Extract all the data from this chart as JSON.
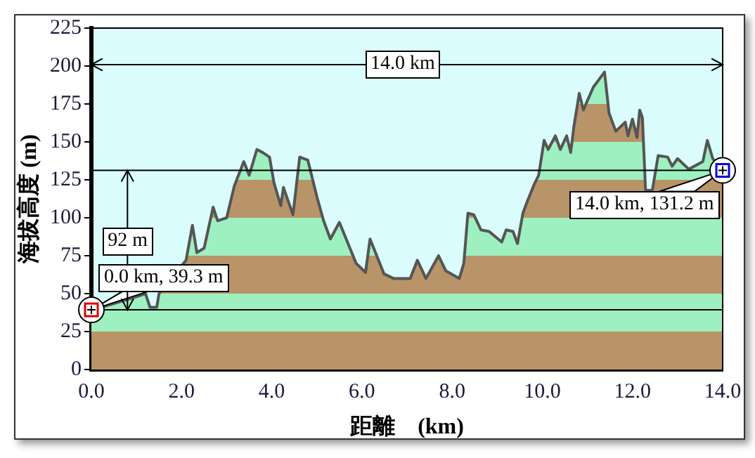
{
  "chart_data": {
    "type": "area",
    "xlabel": "距離　(km)",
    "ylabel": "海拔高度 (m)",
    "series": [
      {
        "color": "#555555",
        "x": [
          0,
          0.5,
          1.0,
          1.2,
          1.3,
          1.45,
          1.5,
          1.8,
          2.1,
          2.24,
          2.34,
          2.5,
          2.7,
          2.8,
          3.0,
          3.17,
          3.38,
          3.5,
          3.67,
          3.8,
          3.95,
          4.05,
          4.2,
          4.26,
          4.47,
          4.62,
          4.8,
          5.0,
          5.15,
          5.3,
          5.5,
          5.87,
          6.08,
          6.18,
          6.49,
          6.7,
          7.07,
          7.23,
          7.42,
          7.7,
          7.86,
          8.16,
          8.26,
          8.35,
          8.48,
          8.64,
          8.82,
          9.1,
          9.2,
          9.35,
          9.45,
          9.57,
          9.67,
          9.82,
          9.92,
          10.04,
          10.13,
          10.29,
          10.4,
          10.54,
          10.63,
          10.7,
          10.82,
          10.91,
          11.13,
          11.38,
          11.48,
          11.63,
          11.84,
          11.9,
          12.0,
          12.1,
          12.16,
          12.22,
          12.29,
          12.44,
          12.57,
          12.78,
          12.88,
          13.0,
          13.25,
          13.47,
          13.56,
          13.66,
          13.78,
          14.0
        ],
        "values": [
          39,
          null,
          48,
          50,
          41,
          41,
          50,
          null,
          72,
          95,
          77,
          80,
          107,
          98,
          100,
          121,
          137,
          128,
          145,
          143,
          140,
          123,
          108,
          120,
          102,
          140,
          138,
          114,
          98,
          86,
          97,
          70,
          64,
          86,
          63,
          60,
          60,
          72,
          60,
          75,
          65,
          60,
          70,
          103,
          102,
          92,
          91,
          84,
          92,
          91,
          83,
          103,
          111,
          122,
          128,
          151,
          145,
          154,
          145,
          154,
          143,
          160,
          182,
          171,
          186,
          196,
          169,
          157,
          163,
          154,
          165,
          153,
          171,
          166,
          118,
          118,
          141,
          140,
          134,
          139,
          132,
          null,
          137,
          151,
          139,
          131
        ]
      }
    ],
    "xlim": [
      0,
      14
    ],
    "xticks": [
      {
        "value": 0,
        "label": "0.0"
      },
      {
        "value": 2,
        "label": "2.0"
      },
      {
        "value": 4,
        "label": "4.0"
      },
      {
        "value": 6,
        "label": "6.0"
      },
      {
        "value": 8,
        "label": "8.0"
      },
      {
        "value": 10,
        "label": "10.0"
      },
      {
        "value": 12,
        "label": "12.0"
      },
      {
        "value": 14,
        "label": "14.0"
      }
    ],
    "ylim": [
      0,
      225
    ],
    "yticks": [
      0,
      25,
      50,
      75,
      100,
      125,
      150,
      175,
      200,
      225
    ],
    "ref_lines": [
      {
        "axis": "y",
        "value": 39.3,
        "color": "#000000"
      },
      {
        "axis": "y",
        "value": 131.2,
        "color": "#000000"
      }
    ],
    "annotations": [
      "14.0 km",
      {
        "text": "92 m",
        "x": 0.8,
        "y": 84
      },
      {
        "text": "0.0 km, 39.3 m",
        "x": 0,
        "y": 39.3
      },
      {
        "text": "14.0 km, 131.2 m",
        "x": 14,
        "y": 131.2
      }
    ]
  }
}
